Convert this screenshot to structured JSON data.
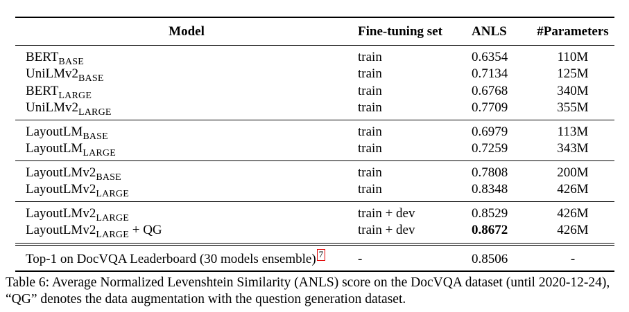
{
  "table": {
    "headers": {
      "model": "Model",
      "fine_tuning": "Fine-tuning set",
      "anls": "ANLS",
      "params": "#Parameters"
    },
    "rows": [
      {
        "model": "BERT",
        "sub": "BASE",
        "suffix": "",
        "fine": "train",
        "anls": "0.6354",
        "params": "110M"
      },
      {
        "model": "UniLMv2",
        "sub": "BASE",
        "suffix": "",
        "fine": "train",
        "anls": "0.7134",
        "params": "125M"
      },
      {
        "model": "BERT",
        "sub": "LARGE",
        "suffix": "",
        "fine": "train",
        "anls": "0.6768",
        "params": "340M"
      },
      {
        "model": "UniLMv2",
        "sub": "LARGE",
        "suffix": "",
        "fine": "train",
        "anls": "0.7709",
        "params": "355M"
      },
      {
        "model": "LayoutLM",
        "sub": "BASE",
        "suffix": "",
        "fine": "train",
        "anls": "0.6979",
        "params": "113M"
      },
      {
        "model": "LayoutLM",
        "sub": "LARGE",
        "suffix": "",
        "fine": "train",
        "anls": "0.7259",
        "params": "343M"
      },
      {
        "model": "LayoutLMv2",
        "sub": "BASE",
        "suffix": "",
        "fine": "train",
        "anls": "0.7808",
        "params": "200M"
      },
      {
        "model": "LayoutLMv2",
        "sub": "LARGE",
        "suffix": "",
        "fine": "train",
        "anls": "0.8348",
        "params": "426M"
      },
      {
        "model": "LayoutLMv2",
        "sub": "LARGE",
        "suffix": "",
        "fine": "train + dev",
        "anls": "0.8529",
        "params": "426M"
      },
      {
        "model": "LayoutLMv2",
        "sub": "LARGE",
        "suffix": " + QG",
        "fine": "train + dev",
        "anls": "0.8672",
        "params": "426M"
      }
    ],
    "final_row": {
      "model": "Top-1 on DocVQA Leaderboard (30 models ensemble)",
      "footnote": "7",
      "fine": "-",
      "anls": "0.8506",
      "params": "-"
    }
  },
  "caption": "Table 6: Average Normalized Levenshtein Similarity (ANLS) score on the DocVQA dataset (until 2020-12-24), “QG” denotes the data augmentation with the question generation dataset."
}
